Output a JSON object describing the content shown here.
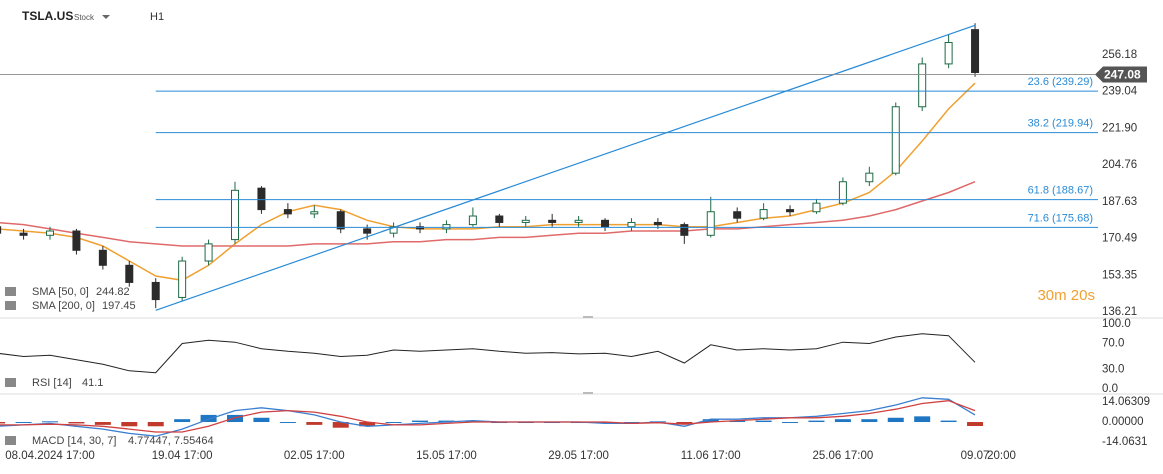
{
  "header": {
    "symbol": "TSLA.US",
    "asset_type": "Stock",
    "timeframe": "H1"
  },
  "countdown": "30m 20s",
  "chart_data": [
    {
      "type": "candlestick",
      "categories": [
        null,
        null,
        "08.04.2024 17:00",
        null,
        null,
        null,
        null,
        "19.04 17:00",
        null,
        null,
        null,
        null,
        "02.05 17:00",
        null,
        null,
        null,
        null,
        "15.05 17:00",
        null,
        null,
        null,
        null,
        "29.05 17:00",
        null,
        null,
        null,
        null,
        "11.06 17:00",
        null,
        null,
        null,
        null,
        "25.06 17:00",
        null,
        null,
        null,
        null,
        "09.07",
        "20:00"
      ],
      "open": [
        176,
        173,
        172,
        174,
        165,
        158,
        150,
        143,
        160,
        170,
        194,
        184,
        182,
        183,
        175,
        173,
        176,
        175,
        177,
        181,
        178,
        179,
        178,
        179,
        176,
        178,
        177,
        172,
        183,
        180,
        184,
        183,
        187,
        197,
        201,
        232,
        252,
        268,
        null
      ],
      "high": [
        178,
        175,
        176,
        175,
        167,
        160,
        152,
        162,
        170,
        197,
        195,
        187,
        186,
        184,
        177,
        178,
        178,
        179,
        185,
        182,
        181,
        182,
        181,
        180,
        180,
        180,
        178,
        190,
        185,
        187,
        186,
        189,
        199,
        204,
        234,
        255,
        266,
        271,
        null
      ],
      "low": [
        171,
        170,
        170,
        163,
        156,
        148,
        138,
        141,
        158,
        168,
        182,
        180,
        180,
        173,
        170,
        171,
        173,
        173,
        176,
        176,
        176,
        176,
        176,
        174,
        174,
        175,
        168,
        171,
        178,
        179,
        181,
        182,
        186,
        195,
        200,
        230,
        250,
        246,
        null
      ],
      "close": [
        173,
        172,
        174,
        165,
        158,
        150,
        142,
        160,
        168,
        193,
        184,
        182,
        183,
        175,
        173,
        176,
        175,
        177,
        181,
        178,
        179,
        178,
        179,
        176,
        178,
        177,
        172,
        183,
        180,
        184,
        183,
        187,
        197,
        201,
        232,
        252,
        262,
        248,
        null
      ],
      "up_color": "#1e6b45",
      "down_color": "#2b2b2b",
      "ylim": [
        133.4,
        279.5
      ],
      "yticks": [
        136.21,
        153.35,
        170.49,
        187.63,
        204.76,
        {
          "value": 221.9,
          "label": "221.90"
        },
        239.04,
        256.18
      ],
      "series": [
        {
          "name": "SMA [50, 0]",
          "color": "#f0a030",
          "legend_value": 244.82,
          "values": [
            175,
            174,
            173,
            171,
            167,
            160,
            153,
            151,
            158,
            168,
            177,
            183,
            186,
            184,
            179,
            176,
            175,
            175,
            175,
            176,
            176,
            177,
            177,
            177,
            177,
            177,
            176,
            176,
            178,
            180,
            181,
            184,
            187,
            192,
            202,
            216,
            231,
            243,
            null
          ]
        },
        {
          "name": "SMA [200, 0]",
          "color": "#e06a6a",
          "legend_value": 197.45,
          "values": [
            178,
            177,
            175,
            173,
            171,
            169,
            168,
            167,
            167,
            167,
            167,
            167,
            168,
            168,
            168,
            169,
            169,
            170,
            170,
            171,
            171,
            172,
            173,
            173,
            174,
            174,
            174,
            175,
            175,
            176,
            177,
            178,
            179,
            181,
            184,
            188,
            192,
            197,
            null
          ]
        }
      ],
      "fib_levels": [
        {
          "value": 239.29,
          "label": "23.6 (239.29)"
        },
        {
          "value": 219.94,
          "label": "38.2 (219.94)"
        },
        {
          "value": 188.67,
          "label": "61.8 (188.67)"
        },
        {
          "value": 175.68,
          "label": "71.6 (175.68)"
        }
      ],
      "fib_color": "#2a8bd6",
      "trend_line": {
        "x": [
          6,
          37
        ],
        "values": [
          137,
          270
        ],
        "color": "#2a8bd6"
      },
      "last_price": 247.08
    },
    {
      "type": "line",
      "ylim": [
        -6.2,
        109.2
      ],
      "yticks": [
        {
          "value": 100,
          "label": "100.0"
        },
        {
          "value": 70,
          "label": "70.0"
        },
        {
          "value": 30,
          "label": "30.0"
        },
        {
          "value": 0,
          "label": "0.0"
        }
      ],
      "series": [
        {
          "name": "RSI [14]",
          "color": "#222222",
          "legend_value": 41.1,
          "values": [
            55,
            50,
            52,
            45,
            38,
            28,
            25,
            70,
            75,
            72,
            62,
            58,
            55,
            50,
            52,
            60,
            58,
            60,
            62,
            58,
            55,
            56,
            54,
            55,
            50,
            58,
            40,
            68,
            60,
            62,
            60,
            62,
            72,
            70,
            80,
            85,
            82,
            41,
            null
          ]
        }
      ]
    },
    {
      "type": "macd",
      "name": "MACD [14, 30, 7]",
      "legend_values": "4.77447, 7.55464",
      "ylim": [
        -26.7,
        19
      ],
      "yticks": [
        {
          "value": 14.06309,
          "label": "14.06309"
        },
        {
          "value": 0,
          "label": "0.00000"
        },
        {
          "value": -14.0631,
          "label": "-14.0631"
        }
      ],
      "series": [
        {
          "color": "#3a7fd0",
          "values": [
            -3,
            -2,
            -1,
            -3,
            -5,
            -8,
            -10,
            -5,
            2,
            8,
            10,
            8,
            5,
            0,
            -3,
            -2,
            -1,
            0,
            1,
            0,
            0,
            0,
            0,
            -1,
            -1,
            0,
            -3,
            2,
            2,
            3,
            3,
            4,
            6,
            8,
            12,
            17,
            16,
            5,
            null
          ]
        },
        {
          "color": "#d04040",
          "values": [
            -2,
            -2,
            -1.5,
            -2,
            -3,
            -5,
            -7,
            -7,
            -3,
            3,
            7,
            8,
            7,
            4,
            0,
            -2,
            -2,
            -1,
            0,
            0,
            0,
            0,
            0,
            0,
            -1,
            -0.5,
            -1.5,
            0,
            1,
            2,
            3,
            3,
            4,
            6,
            9,
            13,
            15,
            8,
            null
          ]
        }
      ],
      "histogram": {
        "positive_color": "#1f77c4",
        "negative_color": "#c0392b",
        "values": [
          -1,
          0,
          0.5,
          -1,
          -2,
          -3,
          -3,
          2,
          5,
          5,
          3,
          0,
          -2,
          -4,
          -3,
          0,
          1,
          1,
          1,
          0,
          0,
          0,
          0,
          -1,
          0,
          0.5,
          -1.5,
          2,
          1,
          1,
          0,
          1,
          2,
          2,
          3,
          4,
          1,
          -2.8,
          null
        ]
      }
    }
  ]
}
